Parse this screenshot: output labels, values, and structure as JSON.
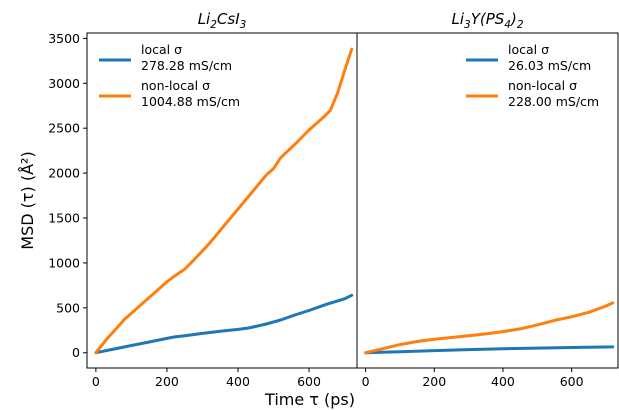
{
  "chart_data": [
    {
      "type": "line",
      "title_base": "Li",
      "title_parts": [
        {
          "text": "Li",
          "sub": false
        },
        {
          "text": "2",
          "sub": true
        },
        {
          "text": "CsI",
          "sub": false
        },
        {
          "text": "3",
          "sub": true
        }
      ],
      "xlabel": "Time τ (ps)",
      "ylabel": "MSD (τ) (Å²)",
      "xlim": [
        -25,
        735
      ],
      "ylim": [
        -170,
        3560
      ],
      "xticks": [
        0,
        200,
        400,
        600
      ],
      "yticks": [
        0,
        500,
        1000,
        1500,
        2000,
        2500,
        3000,
        3500
      ],
      "legend_position": "top-left",
      "series": [
        {
          "name": "local σ",
          "value_label": "278.28 mS/cm",
          "color": "#1f77b4",
          "x": [
            0,
            50,
            100,
            150,
            200,
            220,
            250,
            300,
            350,
            400,
            430,
            480,
            520,
            560,
            600,
            650,
            700,
            720
          ],
          "y": [
            0,
            40,
            80,
            120,
            160,
            175,
            190,
            215,
            240,
            260,
            275,
            320,
            365,
            420,
            470,
            540,
            600,
            640
          ]
        },
        {
          "name": "non-local σ",
          "value_label": "1004.88 mS/cm",
          "color": "#ff7f0e",
          "x": [
            0,
            30,
            60,
            80,
            100,
            140,
            180,
            200,
            220,
            250,
            280,
            320,
            360,
            400,
            440,
            480,
            500,
            520,
            560,
            600,
            640,
            660,
            680,
            700,
            720
          ],
          "y": [
            0,
            150,
            280,
            370,
            440,
            580,
            720,
            790,
            850,
            930,
            1050,
            1220,
            1410,
            1600,
            1790,
            1980,
            2050,
            2170,
            2320,
            2480,
            2620,
            2700,
            2890,
            3140,
            3380
          ]
        }
      ]
    },
    {
      "type": "line",
      "title_parts": [
        {
          "text": "Li",
          "sub": false
        },
        {
          "text": "3",
          "sub": true
        },
        {
          "text": "Y(PS",
          "sub": false
        },
        {
          "text": "4",
          "sub": true
        },
        {
          "text": ")",
          "sub": false
        },
        {
          "text": "2",
          "sub": true
        }
      ],
      "xlabel": "",
      "ylabel": "",
      "xlim": [
        -25,
        735
      ],
      "ylim": [
        -170,
        3560
      ],
      "xticks": [
        0,
        200,
        400,
        600
      ],
      "legend_position": "top-right",
      "series": [
        {
          "name": "local σ",
          "value_label": "26.03 mS/cm",
          "color": "#1f77b4",
          "x": [
            0,
            100,
            200,
            300,
            400,
            500,
            600,
            720
          ],
          "y": [
            0,
            12,
            24,
            35,
            45,
            52,
            58,
            65
          ]
        },
        {
          "name": "non-local σ",
          "value_label": "228.00 mS/cm",
          "color": "#ff7f0e",
          "x": [
            0,
            50,
            100,
            150,
            200,
            250,
            300,
            350,
            400,
            450,
            500,
            550,
            600,
            650,
            700,
            720
          ],
          "y": [
            0,
            45,
            90,
            125,
            150,
            170,
            190,
            210,
            235,
            265,
            310,
            360,
            400,
            450,
            520,
            555
          ]
        }
      ]
    }
  ]
}
